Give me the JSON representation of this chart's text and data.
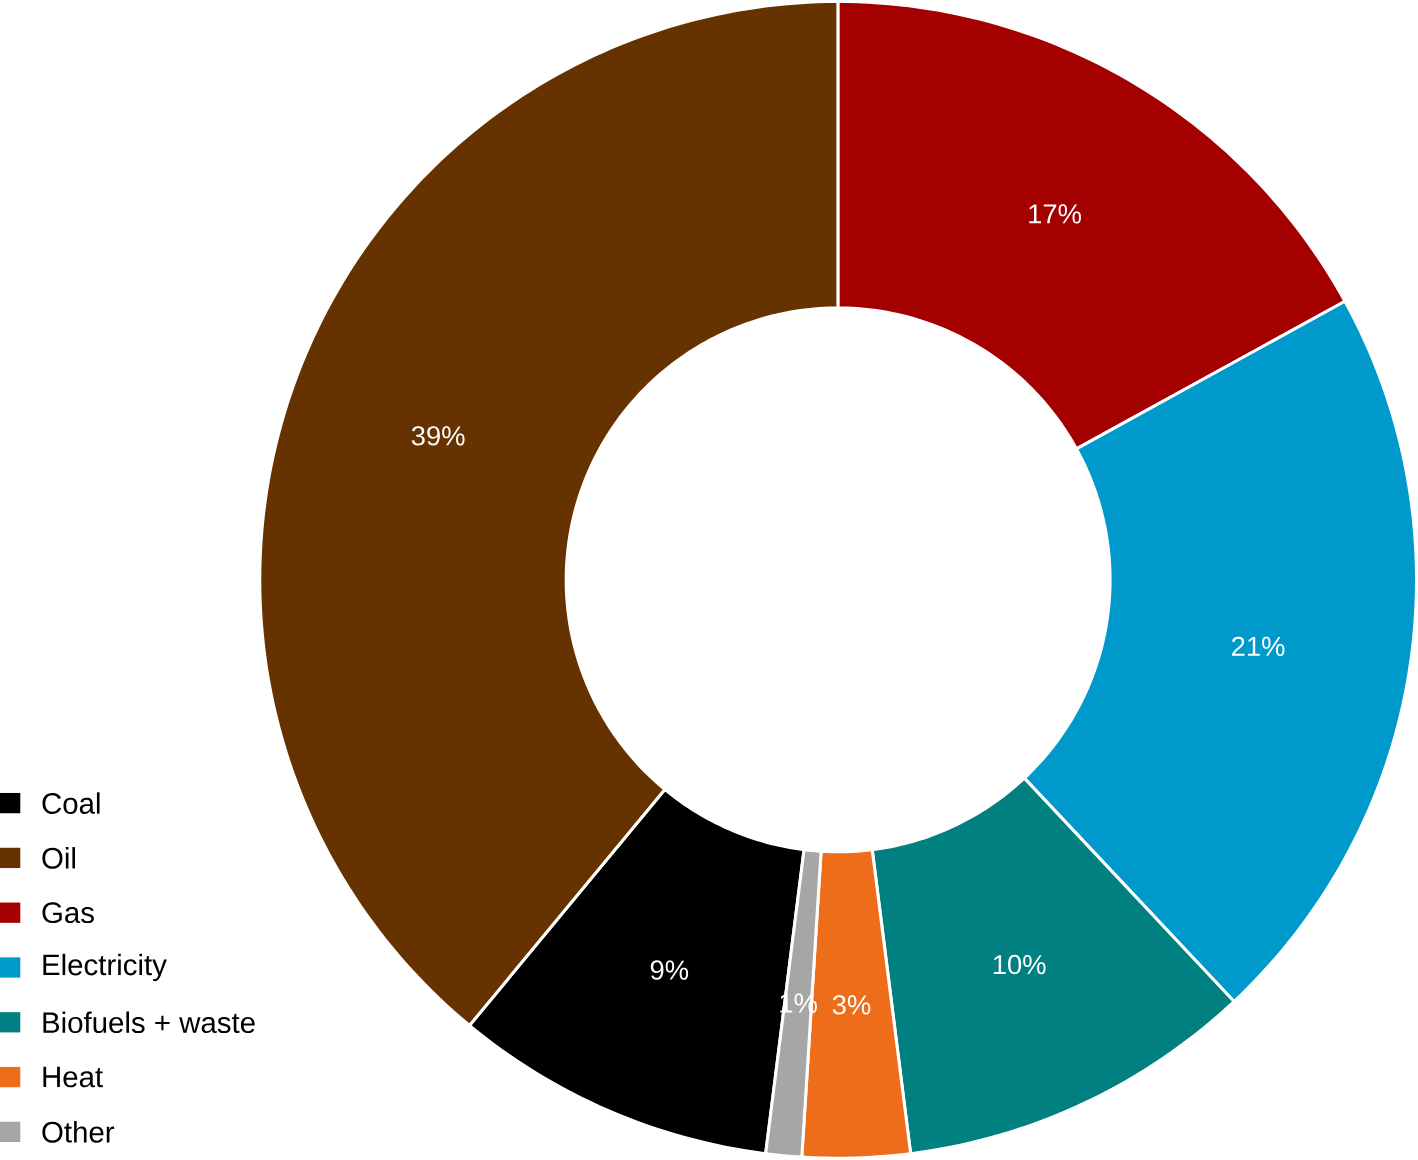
{
  "chart_data": {
    "type": "donut",
    "categories": [
      "Coal",
      "Oil",
      "Gas",
      "Electricity",
      "Biofuels + waste",
      "Heat",
      "Other"
    ],
    "values": [
      9,
      39,
      17,
      21,
      10,
      3,
      1
    ],
    "colors": [
      "#000000",
      "#663300",
      "#a50000",
      "#0099cc",
      "#008080",
      "#ed6d1b",
      "#a6a6a6"
    ],
    "value_labels": [
      "9%",
      "39%",
      "17%",
      "21%",
      "10%",
      "3%",
      "1%"
    ],
    "legend": "bottom left"
  }
}
